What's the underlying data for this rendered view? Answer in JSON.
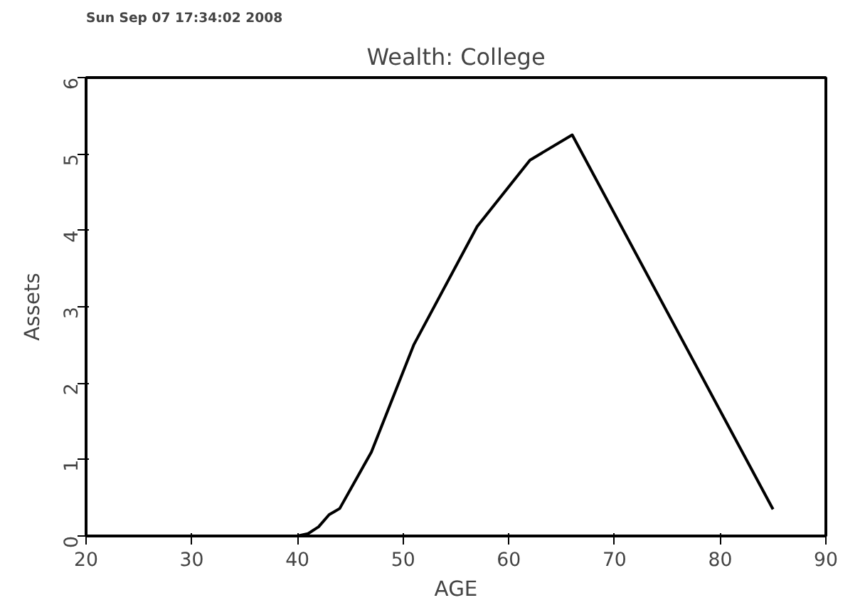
{
  "chart_data": {
    "type": "line",
    "title": "Wealth: College",
    "xlabel": "AGE",
    "ylabel": "Assets",
    "annotations": [
      "Sun Sep 07 17:34:02 2008"
    ],
    "x": [
      25,
      30,
      35,
      40,
      41,
      42,
      43,
      43.5,
      44,
      47,
      51,
      57,
      62,
      66,
      85
    ],
    "series": [
      {
        "color": "#000000",
        "values": [
          0,
          0,
          0,
          0,
          0.03,
          0.12,
          0.28,
          0.32,
          0.36,
          1.1,
          2.5,
          4.05,
          4.92,
          5.25,
          0.35
        ]
      }
    ],
    "xlim": [
      20,
      90
    ],
    "ylim": [
      0,
      6
    ],
    "xticks": [
      20,
      30,
      40,
      50,
      60,
      70,
      80,
      90
    ],
    "yticks": [
      0,
      1,
      2,
      3,
      4,
      5,
      6
    ],
    "grid": false,
    "marker": "none",
    "line_style": "solid"
  }
}
